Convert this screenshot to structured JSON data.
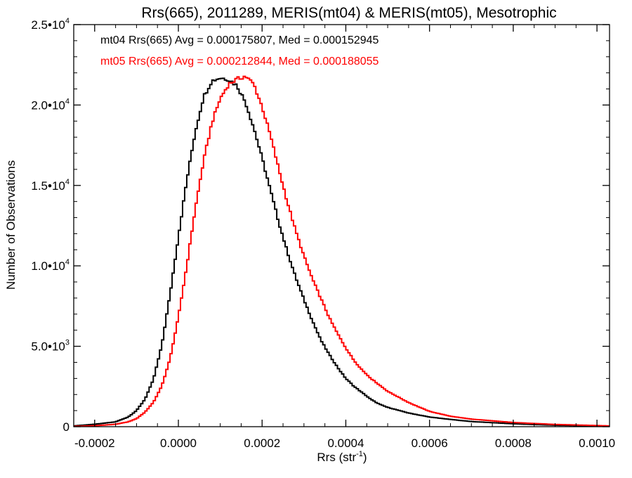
{
  "chart_data": {
    "type": "line",
    "title": "Rrs(665), 2011289, MERIS(mt04) & MERIS(mt05), Mesotrophic",
    "xlabel": "Rrs (str",
    "xlabel_sup": "-1",
    "xlabel_close": ")",
    "ylabel": "Number of Observations",
    "xlim": [
      -0.00025,
      0.00103
    ],
    "ylim": [
      0,
      25000
    ],
    "x_ticks": [
      {
        "value": -0.0002,
        "label": "-0.0002"
      },
      {
        "value": 0.0,
        "label": "0.0000"
      },
      {
        "value": 0.0002,
        "label": "0.0002"
      },
      {
        "value": 0.0004,
        "label": "0.0004"
      },
      {
        "value": 0.0006,
        "label": "0.0006"
      },
      {
        "value": 0.0008,
        "label": "0.0008"
      },
      {
        "value": 0.001,
        "label": "0.0010"
      }
    ],
    "y_ticks": [
      {
        "value": 0,
        "mant": "0",
        "exp": ""
      },
      {
        "value": 5000,
        "mant": "5.0•10",
        "exp": "3"
      },
      {
        "value": 10000,
        "mant": "1.0•10",
        "exp": "4"
      },
      {
        "value": 15000,
        "mant": "1.5•10",
        "exp": "4"
      },
      {
        "value": 20000,
        "mant": "2.0•10",
        "exp": "4"
      },
      {
        "value": 25000,
        "mant": "2.5•10",
        "exp": "4"
      }
    ],
    "grid": false,
    "series": [
      {
        "label": "mt04 Rrs(665) Avg = 0.000175807, Med = 0.000152945",
        "color": "#000000",
        "x": [
          -0.00025,
          -0.0002,
          -0.00015,
          -0.00012,
          -0.0001,
          -8e-05,
          -6e-05,
          -4e-05,
          -2e-05,
          0.0,
          2e-05,
          4e-05,
          6e-05,
          8e-05,
          0.0001,
          0.00012,
          0.00014,
          0.00016,
          0.00018,
          0.0002,
          0.00022,
          0.00024,
          0.00026,
          0.00028,
          0.0003,
          0.00032,
          0.00034,
          0.00036,
          0.00038,
          0.0004,
          0.00042,
          0.00044,
          0.00046,
          0.00048,
          0.0005,
          0.00055,
          0.0006,
          0.00065,
          0.0007,
          0.0008,
          0.0009,
          0.00103
        ],
        "y": [
          50,
          150,
          300,
          600,
          1000,
          1700,
          2900,
          5000,
          8200,
          11800,
          15300,
          18300,
          20500,
          21500,
          21700,
          21600,
          21200,
          20200,
          18600,
          16700,
          14700,
          12700,
          10900,
          9300,
          7900,
          6600,
          5400,
          4500,
          3700,
          3000,
          2500,
          2100,
          1700,
          1400,
          1200,
          850,
          600,
          450,
          320,
          180,
          90,
          30
        ]
      },
      {
        "label": "mt05 Rrs(665) Avg = 0.000212844, Med = 0.000188055",
        "color": "#ff0000",
        "x": [
          -0.00025,
          -0.0002,
          -0.00015,
          -0.00012,
          -0.0001,
          -8e-05,
          -6e-05,
          -4e-05,
          -2e-05,
          0.0,
          2e-05,
          4e-05,
          6e-05,
          8e-05,
          0.0001,
          0.00012,
          0.00014,
          0.00016,
          0.00018,
          0.0002,
          0.00022,
          0.00024,
          0.00026,
          0.00028,
          0.0003,
          0.00032,
          0.00034,
          0.00036,
          0.00038,
          0.0004,
          0.00042,
          0.00044,
          0.00046,
          0.00048,
          0.0005,
          0.00055,
          0.0006,
          0.00065,
          0.0007,
          0.0008,
          0.0009,
          0.00103
        ],
        "y": [
          20,
          60,
          150,
          300,
          500,
          900,
          1500,
          2500,
          4200,
          6800,
          10000,
          13500,
          16500,
          18900,
          20400,
          21300,
          21600,
          21800,
          21300,
          19900,
          18100,
          16000,
          14000,
          12200,
          10600,
          9200,
          8000,
          6800,
          5800,
          4900,
          4100,
          3500,
          3000,
          2600,
          2200,
          1500,
          950,
          650,
          470,
          260,
          140,
          50
        ]
      }
    ]
  }
}
